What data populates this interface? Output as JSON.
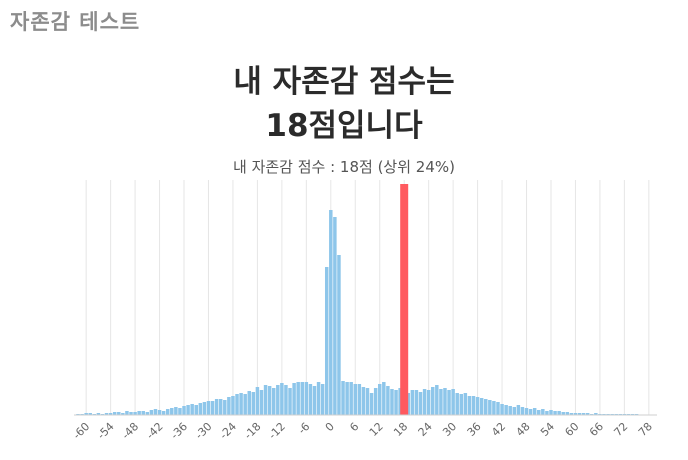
{
  "app": {
    "title": "자존감 테스트"
  },
  "result": {
    "heading_line1": "내 자존감 점수는",
    "heading_line2": "18점입니다",
    "caption": "내 자존감 점수 :  18점 (상위 24%)"
  },
  "colors": {
    "bars": "#8ec6ea",
    "highlight": "#ff5a5f",
    "grid": "#e6e6e6",
    "baseline": "#cfcfcf",
    "tick_text": "#666666"
  },
  "chart_data": {
    "type": "bar",
    "title": "",
    "xlabel": "",
    "ylabel": "",
    "x_range": [
      -62,
      80
    ],
    "x_ticks": [
      -60,
      -54,
      -48,
      -42,
      -36,
      -30,
      -24,
      -18,
      -12,
      -6,
      0,
      6,
      12,
      18,
      24,
      30,
      36,
      42,
      48,
      54,
      60,
      66,
      72,
      78
    ],
    "x_tick_labels": [
      "-60",
      "-54",
      "-48",
      "-42",
      "-36",
      "-30",
      "-24",
      "-18",
      "-12",
      "-6",
      "0",
      "6",
      "12",
      "18",
      "24",
      "30",
      "36",
      "42",
      "48",
      "54",
      "60",
      "66",
      "72",
      "78"
    ],
    "bin_width": 1,
    "grid": true,
    "highlight_x": 18,
    "y_max": 210,
    "bins": [
      {
        "x": -62,
        "y": 1
      },
      {
        "x": -61,
        "y": 1
      },
      {
        "x": -60,
        "y": 2
      },
      {
        "x": -59,
        "y": 2
      },
      {
        "x": -58,
        "y": 1
      },
      {
        "x": -57,
        "y": 2
      },
      {
        "x": -56,
        "y": 1
      },
      {
        "x": -55,
        "y": 2
      },
      {
        "x": -54,
        "y": 2
      },
      {
        "x": -53,
        "y": 3
      },
      {
        "x": -52,
        "y": 3
      },
      {
        "x": -51,
        "y": 2
      },
      {
        "x": -50,
        "y": 4
      },
      {
        "x": -49,
        "y": 3
      },
      {
        "x": -48,
        "y": 3
      },
      {
        "x": -47,
        "y": 4
      },
      {
        "x": -46,
        "y": 4
      },
      {
        "x": -45,
        "y": 3
      },
      {
        "x": -44,
        "y": 5
      },
      {
        "x": -43,
        "y": 6
      },
      {
        "x": -42,
        "y": 5
      },
      {
        "x": -41,
        "y": 4
      },
      {
        "x": -40,
        "y": 6
      },
      {
        "x": -39,
        "y": 7
      },
      {
        "x": -38,
        "y": 8
      },
      {
        "x": -37,
        "y": 7
      },
      {
        "x": -36,
        "y": 9
      },
      {
        "x": -35,
        "y": 10
      },
      {
        "x": -34,
        "y": 11
      },
      {
        "x": -33,
        "y": 10
      },
      {
        "x": -32,
        "y": 12
      },
      {
        "x": -31,
        "y": 13
      },
      {
        "x": -30,
        "y": 14
      },
      {
        "x": -29,
        "y": 14
      },
      {
        "x": -28,
        "y": 16
      },
      {
        "x": -27,
        "y": 16
      },
      {
        "x": -26,
        "y": 15
      },
      {
        "x": -25,
        "y": 18
      },
      {
        "x": -24,
        "y": 19
      },
      {
        "x": -23,
        "y": 21
      },
      {
        "x": -22,
        "y": 22
      },
      {
        "x": -21,
        "y": 21
      },
      {
        "x": -20,
        "y": 24
      },
      {
        "x": -19,
        "y": 23
      },
      {
        "x": -18,
        "y": 28
      },
      {
        "x": -17,
        "y": 25
      },
      {
        "x": -16,
        "y": 30
      },
      {
        "x": -15,
        "y": 29
      },
      {
        "x": -14,
        "y": 27
      },
      {
        "x": -13,
        "y": 30
      },
      {
        "x": -12,
        "y": 32
      },
      {
        "x": -11,
        "y": 30
      },
      {
        "x": -10,
        "y": 27
      },
      {
        "x": -9,
        "y": 32
      },
      {
        "x": -8,
        "y": 33
      },
      {
        "x": -7,
        "y": 33
      },
      {
        "x": -6,
        "y": 33
      },
      {
        "x": -5,
        "y": 31
      },
      {
        "x": -4,
        "y": 29
      },
      {
        "x": -3,
        "y": 33
      },
      {
        "x": -2,
        "y": 31
      },
      {
        "x": -1,
        "y": 148
      },
      {
        "x": 0,
        "y": 205
      },
      {
        "x": 1,
        "y": 198
      },
      {
        "x": 2,
        "y": 160
      },
      {
        "x": 3,
        "y": 34
      },
      {
        "x": 4,
        "y": 33
      },
      {
        "x": 5,
        "y": 33
      },
      {
        "x": 6,
        "y": 31
      },
      {
        "x": 7,
        "y": 31
      },
      {
        "x": 8,
        "y": 28
      },
      {
        "x": 9,
        "y": 27
      },
      {
        "x": 10,
        "y": 22
      },
      {
        "x": 11,
        "y": 27
      },
      {
        "x": 12,
        "y": 31
      },
      {
        "x": 13,
        "y": 33
      },
      {
        "x": 14,
        "y": 29
      },
      {
        "x": 15,
        "y": 26
      },
      {
        "x": 16,
        "y": 25
      },
      {
        "x": 17,
        "y": 27
      },
      {
        "x": 18,
        "y": 28
      },
      {
        "x": 19,
        "y": 22
      },
      {
        "x": 20,
        "y": 25
      },
      {
        "x": 21,
        "y": 25
      },
      {
        "x": 22,
        "y": 23
      },
      {
        "x": 23,
        "y": 26
      },
      {
        "x": 24,
        "y": 25
      },
      {
        "x": 25,
        "y": 28
      },
      {
        "x": 26,
        "y": 30
      },
      {
        "x": 27,
        "y": 26
      },
      {
        "x": 28,
        "y": 27
      },
      {
        "x": 29,
        "y": 25
      },
      {
        "x": 30,
        "y": 26
      },
      {
        "x": 31,
        "y": 22
      },
      {
        "x": 32,
        "y": 21
      },
      {
        "x": 33,
        "y": 22
      },
      {
        "x": 34,
        "y": 19
      },
      {
        "x": 35,
        "y": 19
      },
      {
        "x": 36,
        "y": 18
      },
      {
        "x": 37,
        "y": 17
      },
      {
        "x": 38,
        "y": 16
      },
      {
        "x": 39,
        "y": 15
      },
      {
        "x": 40,
        "y": 14
      },
      {
        "x": 41,
        "y": 13
      },
      {
        "x": 42,
        "y": 11
      },
      {
        "x": 43,
        "y": 10
      },
      {
        "x": 44,
        "y": 9
      },
      {
        "x": 45,
        "y": 8
      },
      {
        "x": 46,
        "y": 10
      },
      {
        "x": 47,
        "y": 8
      },
      {
        "x": 48,
        "y": 7
      },
      {
        "x": 49,
        "y": 6
      },
      {
        "x": 50,
        "y": 7
      },
      {
        "x": 51,
        "y": 5
      },
      {
        "x": 52,
        "y": 6
      },
      {
        "x": 53,
        "y": 4
      },
      {
        "x": 54,
        "y": 5
      },
      {
        "x": 55,
        "y": 4
      },
      {
        "x": 56,
        "y": 4
      },
      {
        "x": 57,
        "y": 3
      },
      {
        "x": 58,
        "y": 3
      },
      {
        "x": 59,
        "y": 2
      },
      {
        "x": 60,
        "y": 2
      },
      {
        "x": 61,
        "y": 2
      },
      {
        "x": 62,
        "y": 2
      },
      {
        "x": 63,
        "y": 2
      },
      {
        "x": 64,
        "y": 1
      },
      {
        "x": 65,
        "y": 2
      },
      {
        "x": 66,
        "y": 1
      },
      {
        "x": 67,
        "y": 1
      },
      {
        "x": 68,
        "y": 1
      },
      {
        "x": 69,
        "y": 1
      },
      {
        "x": 70,
        "y": 1
      },
      {
        "x": 71,
        "y": 1
      },
      {
        "x": 72,
        "y": 1
      },
      {
        "x": 73,
        "y": 1
      },
      {
        "x": 74,
        "y": 1
      },
      {
        "x": 75,
        "y": 1
      }
    ]
  }
}
